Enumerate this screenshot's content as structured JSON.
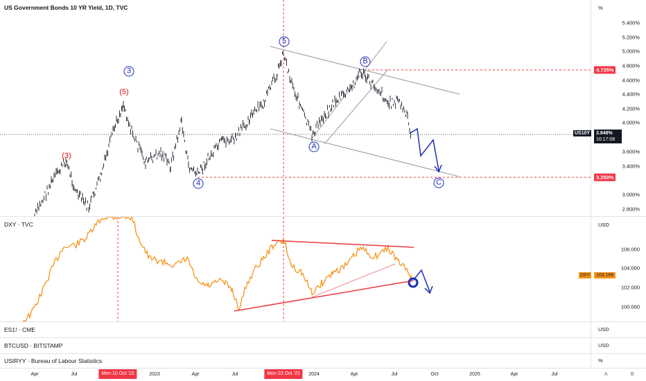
{
  "us10y": {
    "title": "US Government Bonds 10 YR Yield, 1D, TVC",
    "unit": "%",
    "ticks": [
      "5.400%",
      "5.200%",
      "5.000%",
      "4.800%",
      "4.600%",
      "4.400%",
      "4.200%",
      "4.000%",
      "3.600%",
      "3.400%",
      "3.000%",
      "2.800%"
    ],
    "price_tag_symbol": "US10Y",
    "price_tag_value": "3.848%",
    "price_tag_time": "10:17:08",
    "level_top": "4.735%",
    "level_bottom": "3.250%",
    "wave_labels": [
      "(3)",
      "(5)",
      "3",
      "4",
      "5",
      "A",
      "B",
      "C"
    ]
  },
  "dxy": {
    "title": "DXY · TVC",
    "unit": "USD",
    "ticks": [
      "106.000",
      "104.000",
      "102.000",
      "100.000"
    ],
    "price_tag_symbol": "DXY",
    "price_tag_value": "103.166"
  },
  "es1": {
    "title": "ES1! · CME",
    "unit": "USD"
  },
  "btc": {
    "title": "BTCUSD · BITSTAMP",
    "unit": "USD"
  },
  "usiryy": {
    "title": "USIRYY · Bureau of Labour Statistics",
    "unit": "%"
  },
  "time_axis": {
    "labels": [
      "Apr",
      "Jul",
      "2023",
      "Apr",
      "Jul",
      "2024",
      "Apr",
      "Jul",
      "Oct",
      "2025",
      "Apr",
      "Jul"
    ],
    "highlight_1": "Mon 10 Oct '22",
    "highlight_2": "Mon 23 Oct '23"
  },
  "controls": {
    "auto_label": "A",
    "log_label": "B"
  },
  "colors": {
    "dxy_line": "#f7931a",
    "wave_blue": "#1c2bb5",
    "level_red": "#f23645",
    "wedge_red": "#e8383f"
  }
}
